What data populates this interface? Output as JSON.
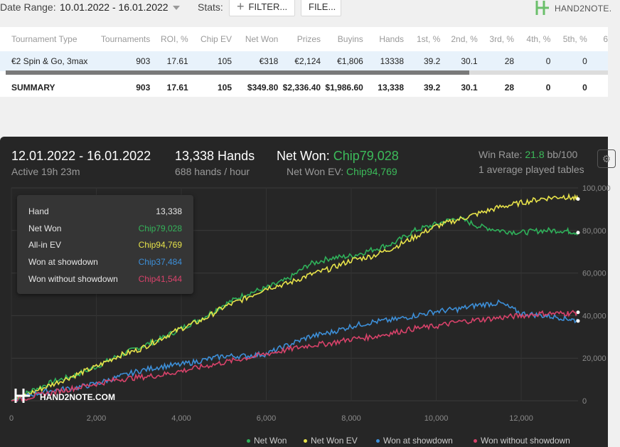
{
  "toolbar": {
    "date_range_label": "Date Range:",
    "date_range_value": "10.01.2022 - 16.01.2022",
    "stats_label": "Stats:",
    "filter_button": "FILTER...",
    "file_button": "FILE...",
    "logo_text": "HAND2NOTE."
  },
  "table": {
    "columns": [
      "Tournament Type",
      "Tournaments",
      "ROI, %",
      "Chip EV",
      "Net Won",
      "Prizes",
      "Buyins",
      "Hands",
      "1st, %",
      "2nd, %",
      "3rd, %",
      "4th, %",
      "5th, %",
      "6"
    ],
    "rows": [
      [
        "€2 Spin & Go, 3max",
        "903",
        "17.61",
        "105",
        "€318",
        "€2,124",
        "€1,806",
        "13338",
        "39.2",
        "30.1",
        "28",
        "0",
        "0",
        ""
      ]
    ],
    "summary": [
      "SUMMARY",
      "903",
      "17.61",
      "105",
      "$349.80",
      "$2,336.40",
      "$1,986.60",
      "13,338",
      "39.2",
      "30.1",
      "28",
      "0",
      "0",
      ""
    ]
  },
  "graph_header": {
    "date_range": "12.01.2022 - 16.01.2022",
    "active": "Active 19h 23m",
    "hands": "13,338 Hands",
    "hands_per_hour": "688 hands / hour",
    "net_won_label": "Net Won: ",
    "net_won_value": "Chip79,028",
    "net_won_ev_label": "Net Won  EV: ",
    "net_won_ev_value": "Chip94,769",
    "win_rate_label": "Win Rate: ",
    "win_rate_value": "21.8",
    "win_rate_unit": " bb/100",
    "avg_tables": "1 average played tables"
  },
  "tooltip": {
    "rows": [
      {
        "label": "Hand",
        "value": "13,338",
        "color": "#e6e6e6"
      },
      {
        "label": "Net Won",
        "value": "Chip79,028",
        "color": "#35b35a"
      },
      {
        "label": "All-in EV",
        "value": "Chip94,769",
        "color": "#e6e24a"
      },
      {
        "label": "Won at showdown",
        "value": "Chip37,484",
        "color": "#3d8fd8"
      },
      {
        "label": "Won without showdown",
        "value": "Chip41,544",
        "color": "#d8426a"
      }
    ]
  },
  "watermark": "HAND2NOTE.COM",
  "chart_data": {
    "type": "line",
    "x_ticks": [
      "0",
      "2,000",
      "4,000",
      "6,000",
      "8,000",
      "10,000",
      "12,000"
    ],
    "y_ticks": [
      "0",
      "20,000",
      "40,000",
      "60,000",
      "80,000",
      "100,000"
    ],
    "xlim": [
      0,
      13338
    ],
    "ylim": [
      0,
      100000
    ],
    "grid": true,
    "legend_position": "bottom",
    "series": [
      {
        "name": "Net Won",
        "color": "#2fb15a",
        "x": [
          0,
          500,
          1000,
          1500,
          2000,
          2500,
          3000,
          3500,
          4000,
          4500,
          5000,
          5500,
          6000,
          6500,
          7000,
          7500,
          8000,
          8500,
          9000,
          9500,
          10000,
          10500,
          11000,
          11500,
          12000,
          12500,
          13000,
          13338
        ],
        "y": [
          0,
          5000,
          9000,
          12000,
          16000,
          21000,
          25000,
          29000,
          34000,
          39000,
          45000,
          50000,
          53000,
          57000,
          64000,
          67000,
          68000,
          71000,
          74000,
          80000,
          83000,
          86000,
          82000,
          80000,
          79000,
          80000,
          80000,
          79028
        ]
      },
      {
        "name": "Net Won  EV",
        "color": "#e8e34a",
        "x": [
          0,
          500,
          1000,
          1500,
          2000,
          2500,
          3000,
          3500,
          4000,
          4500,
          5000,
          5500,
          6000,
          6500,
          7000,
          7500,
          8000,
          8500,
          9000,
          9500,
          10000,
          10500,
          11000,
          11500,
          12000,
          12500,
          13000,
          13338
        ],
        "y": [
          0,
          4000,
          8000,
          12000,
          16000,
          21000,
          24000,
          29000,
          34000,
          38000,
          44000,
          48000,
          53000,
          55000,
          59000,
          62000,
          66000,
          68000,
          72000,
          77000,
          82000,
          85000,
          88000,
          91000,
          93000,
          95000,
          96000,
          94769
        ]
      },
      {
        "name": "Won at showdown",
        "color": "#3d8fd8",
        "x": [
          0,
          500,
          1000,
          1500,
          2000,
          2500,
          3000,
          3500,
          4000,
          4500,
          5000,
          5500,
          6000,
          6500,
          7000,
          7500,
          8000,
          8500,
          9000,
          9500,
          10000,
          10500,
          11000,
          11500,
          12000,
          12500,
          13000,
          13338
        ],
        "y": [
          0,
          3000,
          5000,
          6000,
          8000,
          11000,
          14000,
          16000,
          17000,
          19000,
          21000,
          21000,
          22000,
          26000,
          30000,
          32000,
          35000,
          37000,
          38000,
          40000,
          42000,
          43000,
          45000,
          46000,
          41000,
          40000,
          39000,
          37484
        ]
      },
      {
        "name": "Won without showdown",
        "color": "#d8426a",
        "x": [
          0,
          500,
          1000,
          1500,
          2000,
          2500,
          3000,
          3500,
          4000,
          4500,
          5000,
          5500,
          6000,
          6500,
          7000,
          7500,
          8000,
          8500,
          9000,
          9500,
          10000,
          10500,
          11000,
          11500,
          12000,
          12500,
          13000,
          13338
        ],
        "y": [
          0,
          2000,
          4000,
          6000,
          8000,
          10000,
          11000,
          12000,
          14000,
          16000,
          18000,
          20000,
          22000,
          24000,
          26000,
          27000,
          29000,
          30000,
          32000,
          34000,
          35000,
          37000,
          38000,
          39000,
          40000,
          41000,
          41000,
          41544
        ]
      }
    ]
  }
}
